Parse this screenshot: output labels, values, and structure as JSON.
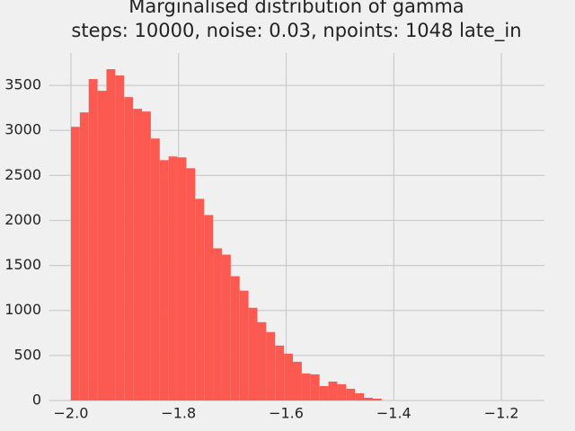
{
  "chart_data": {
    "type": "histogram",
    "title": "Marginalised distribution of gamma",
    "subtitle": "steps: 10000, noise: 0.03, npoints: 1048 late_in",
    "bins": [
      -2.0,
      -1.9835,
      -1.967,
      -1.9505,
      -1.934,
      -1.9175,
      -1.901,
      -1.8845,
      -1.868,
      -1.8515,
      -1.835,
      -1.8185,
      -1.802,
      -1.7855,
      -1.769,
      -1.7525,
      -1.736,
      -1.7195,
      -1.703,
      -1.6865,
      -1.67,
      -1.6535,
      -1.637,
      -1.6205,
      -1.604,
      -1.5875,
      -1.571,
      -1.5545,
      -1.538,
      -1.5215,
      -1.505,
      -1.4885,
      -1.472,
      -1.4555,
      -1.439,
      -1.4225
    ],
    "values": [
      3040,
      3200,
      3570,
      3440,
      3680,
      3610,
      3370,
      3240,
      3210,
      2910,
      2670,
      2710,
      2700,
      2580,
      2240,
      2060,
      1690,
      1620,
      1380,
      1220,
      1030,
      870,
      760,
      610,
      520,
      430,
      300,
      290,
      160,
      210,
      180,
      130,
      80,
      30,
      20
    ],
    "color": "#fc5a50",
    "xlim": [
      -2.04,
      -1.12
    ],
    "ylim": [
      0,
      3860
    ],
    "xticks": [
      {
        "value": -2.0,
        "label": "−2.0"
      },
      {
        "value": -1.8,
        "label": "−1.8"
      },
      {
        "value": -1.6,
        "label": "−1.6"
      },
      {
        "value": -1.4,
        "label": "−1.4"
      },
      {
        "value": -1.2,
        "label": "−1.2"
      }
    ],
    "yticks": [
      0,
      500,
      1000,
      1500,
      2000,
      2500,
      3000,
      3500
    ],
    "grid": true
  }
}
